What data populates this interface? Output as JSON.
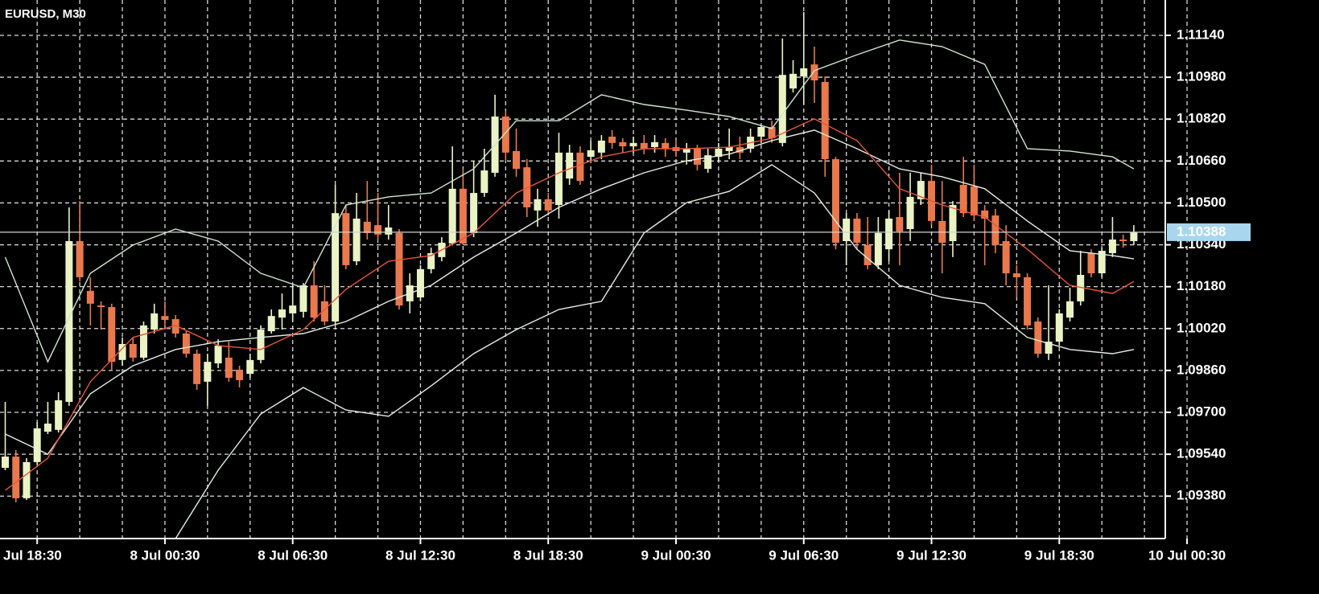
{
  "chart_data": {
    "type": "candlestick",
    "title": "EURUSD, M30",
    "categories": [
      null,
      null,
      null,
      "Jul 18:30",
      null,
      null,
      null,
      null,
      null,
      null,
      null,
      null,
      null,
      null,
      null,
      "8 Jul 00:30",
      null,
      null,
      null,
      null,
      null,
      null,
      null,
      null,
      null,
      null,
      null,
      "8 Jul 06:30",
      null,
      null,
      null,
      null,
      null,
      null,
      null,
      null,
      null,
      null,
      null,
      "8 Jul 12:30",
      null,
      null,
      null,
      null,
      null,
      null,
      null,
      null,
      null,
      null,
      null,
      "8 Jul 18:30",
      null,
      null,
      null,
      null,
      null,
      null,
      null,
      null,
      null,
      null,
      null,
      "9 Jul 00:30",
      null,
      null,
      null,
      null,
      null,
      null,
      null,
      null,
      null,
      null,
      null,
      "9 Jul 06:30",
      null,
      null,
      null,
      null,
      null,
      null,
      null,
      null,
      null,
      null,
      null,
      "9 Jul 12:30",
      null,
      null,
      null,
      null,
      null,
      null,
      null,
      null,
      null,
      null,
      null,
      "9 Jul 18:30",
      null,
      null,
      null,
      null,
      null,
      null,
      null,
      null,
      null,
      null,
      null,
      "10 Jul 00:30"
    ],
    "open": [
      1.09488,
      1.09531,
      1.09372,
      1.0951,
      1.09626,
      1.09633,
      1.0974,
      1.10354,
      1.10164,
      1.10108,
      1.10102,
      1.099,
      1.09961,
      1.09909,
      1.10016,
      1.10068,
      1.10056,
      1.10001,
      1.09924,
      1.09817,
      1.09887,
      1.09909,
      1.09863,
      1.09847,
      1.099,
      1.1001,
      1.10062,
      1.10078,
      1.10084,
      1.10185,
      1.10124,
      1.10047,
      1.10461,
      1.10277,
      1.10428,
      1.10415,
      1.10379,
      1.10385,
      1.10124,
      1.10139,
      1.10247,
      1.10293,
      1.10345,
      1.10554,
      1.10385,
      1.10538,
      1.10615,
      1.1083,
      1.10698,
      1.10636,
      1.10471,
      1.10514,
      1.10492,
      1.10593,
      1.10692,
      1.10676,
      1.10692,
      1.10753,
      1.10732,
      1.10716,
      1.10729,
      1.10713,
      1.10729,
      1.10713,
      1.10692,
      1.10707,
      1.1063,
      1.10676,
      1.10698,
      1.10713,
      1.10707,
      1.10753,
      1.1079,
      1.10729,
      1.10937,
      1.10983,
      1.11029,
      1.10962,
      1.10667,
      1.10354,
      1.1044,
      1.10339,
      1.10262,
      1.10323,
      1.10446,
      1.104,
      1.10514,
      1.10584,
      1.10431,
      1.10354,
      1.10569,
      1.10563,
      1.10471,
      1.10452,
      1.10354,
      1.10231,
      1.10216,
      1.10047,
      1.09924,
      1.0997,
      1.10062,
      1.10124,
      1.10308,
      1.10231,
      1.10308,
      1.1036,
      1.10354,
      null,
      null,
      null,
      null,
      null
    ],
    "high": [
      1.0974,
      1.09556,
      1.09525,
      1.09663,
      1.0974,
      1.09777,
      1.10483,
      1.10507,
      1.10216,
      1.10124,
      1.10115,
      1.09986,
      1.09986,
      1.10047,
      1.10115,
      1.10124,
      1.10072,
      1.1001,
      1.0994,
      1.09924,
      1.09979,
      1.0997,
      1.09878,
      1.09924,
      1.10032,
      1.10093,
      1.10154,
      1.10185,
      1.10194,
      1.10277,
      1.10185,
      1.10569,
      1.10492,
      1.10538,
      1.10584,
      1.10538,
      1.10492,
      1.104,
      1.10231,
      1.10262,
      1.10329,
      1.10369,
      1.10716,
      1.1063,
      1.10661,
      1.10707,
      1.10913,
      1.10851,
      1.10784,
      1.10667,
      1.10554,
      1.10538,
      1.10768,
      1.10722,
      1.10716,
      1.10738,
      1.10759,
      1.10778,
      1.10747,
      1.10753,
      1.10759,
      1.10759,
      1.10747,
      1.10738,
      1.10729,
      1.10722,
      1.10707,
      1.10729,
      1.10784,
      1.10753,
      1.10784,
      1.10799,
      1.10814,
      1.11128,
      1.11045,
      1.11229,
      1.11097,
      1.10983,
      1.10676,
      1.10461,
      1.10461,
      1.10446,
      1.10446,
      1.10471,
      1.10615,
      1.10615,
      1.10615,
      1.10646,
      1.10584,
      1.10507,
      1.10676,
      1.10646,
      1.10492,
      1.10477,
      1.10415,
      1.10262,
      1.10231,
      1.10062,
      1.10185,
      1.10093,
      1.10176,
      1.10317,
      1.10323,
      1.10329,
      1.10446,
      1.10379,
      1.10415,
      null,
      null,
      null,
      null,
      null
    ],
    "low": [
      1.09479,
      1.09356,
      1.09365,
      1.09501,
      1.09617,
      1.09623,
      1.09725,
      1.102,
      1.10032,
      1.10016,
      1.09863,
      1.09878,
      1.09893,
      1.099,
      1.10001,
      1.10032,
      1.09986,
      1.09909,
      1.09786,
      1.09725,
      1.09869,
      1.09817,
      1.09795,
      1.09832,
      1.09887,
      1.10001,
      1.10016,
      1.10047,
      1.10062,
      1.10047,
      1.10032,
      1.10032,
      1.10247,
      1.10262,
      1.1036,
      1.10354,
      1.1036,
      1.10093,
      1.10078,
      1.10124,
      1.10231,
      1.10277,
      1.10339,
      1.10339,
      1.10369,
      1.10523,
      1.106,
      1.10661,
      1.106,
      1.10446,
      1.10409,
      1.10452,
      1.1044,
      1.10569,
      1.10569,
      1.10661,
      1.10667,
      1.10707,
      1.10692,
      1.10692,
      1.10686,
      1.10692,
      1.10676,
      1.10676,
      1.10646,
      1.10624,
      1.10615,
      1.10661,
      1.10667,
      1.10667,
      1.10692,
      1.10729,
      1.10729,
      1.10716,
      1.10922,
      1.10876,
      1.10882,
      1.106,
      1.10323,
      1.10262,
      1.10323,
      1.10247,
      1.10247,
      1.10277,
      1.10262,
      1.10354,
      1.10492,
      1.10415,
      1.10231,
      1.10293,
      1.10446,
      1.10431,
      1.10262,
      1.10308,
      1.10185,
      1.10139,
      1.10016,
      1.09909,
      1.099,
      1.09955,
      1.10047,
      1.10108,
      1.10216,
      1.10216,
      1.10293,
      1.10329,
      1.10339,
      null,
      null,
      null,
      null,
      null
    ],
    "close": [
      1.09531,
      1.09372,
      1.0951,
      1.09639,
      1.09657,
      1.09746,
      1.10354,
      1.10216,
      1.10115,
      1.10102,
      1.09893,
      1.09961,
      1.09909,
      1.10032,
      1.10078,
      1.10053,
      1.10001,
      1.09924,
      1.09808,
      1.09893,
      1.09955,
      1.09832,
      1.09823,
      1.099,
      1.10016,
      1.10068,
      1.10093,
      1.10108,
      1.10185,
      1.10062,
      1.10047,
      1.10461,
      1.10262,
      1.1044,
      1.10385,
      1.10379,
      1.10406,
      1.10108,
      1.10185,
      1.10247,
      1.10308,
      1.10348,
      1.10554,
      1.10345,
      1.10538,
      1.10624,
      1.1083,
      1.10692,
      1.1063,
      1.10483,
      1.10514,
      1.10471,
      1.10692,
      1.10692,
      1.10584,
      1.10701,
      1.10738,
      1.10729,
      1.10716,
      1.10729,
      1.10707,
      1.10732,
      1.10707,
      1.10698,
      1.10707,
      1.10646,
      1.10682,
      1.10707,
      1.10713,
      1.10692,
      1.10753,
      1.1079,
      1.10747,
      1.10989,
      1.10993,
      1.11014,
      1.10968,
      1.10667,
      1.10348,
      1.1044,
      1.10348,
      1.10262,
      1.10385,
      1.1044,
      1.10391,
      1.10523,
      1.10584,
      1.10431,
      1.10348,
      1.10492,
      1.10461,
      1.10452,
      1.1044,
      1.10339,
      1.10231,
      1.10216,
      1.10032,
      1.09924,
      1.0997,
      1.10078,
      1.10124,
      1.10225,
      1.10231,
      1.10317,
      1.1036,
      1.10354,
      1.10388,
      null,
      null,
      null,
      null,
      null
    ],
    "up_color": "#e9f3c4",
    "down_color": "#e9784c",
    "overlays": [
      {
        "color": "#cfe6cf",
        "x": [
          0,
          4,
          8,
          12,
          16,
          20,
          24,
          28,
          32,
          36,
          40,
          44,
          48,
          52,
          56,
          60,
          64,
          68,
          72,
          76,
          80,
          84,
          88,
          92,
          96,
          100,
          104,
          106
        ],
        "values": [
          1.10293,
          1.09893,
          1.10231,
          1.10339,
          1.104,
          1.10354,
          1.10231,
          1.10176,
          1.10492,
          1.10523,
          1.10538,
          1.1063,
          1.10814,
          1.10814,
          1.10913,
          1.10876,
          1.10854,
          1.1083,
          1.10784,
          1.11005,
          1.11066,
          1.11122,
          1.11097,
          1.11029,
          1.10707,
          1.10698,
          1.10676,
          1.1063
        ]
      },
      {
        "color": "#e4efe4",
        "x": [
          0,
          4,
          8,
          12,
          16,
          20,
          24,
          28,
          32,
          36,
          40,
          44,
          48,
          52,
          56,
          60,
          64,
          68,
          72,
          76,
          80,
          84,
          88,
          92,
          96,
          100,
          104,
          106
        ],
        "values": [
          1.09617,
          1.0954,
          1.09771,
          1.09878,
          1.0994,
          1.0997,
          1.09986,
          1.10001,
          1.10047,
          1.10124,
          1.10185,
          1.10293,
          1.10385,
          1.10483,
          1.10554,
          1.10615,
          1.10661,
          1.10686,
          1.10738,
          1.10778,
          1.10707,
          1.1063,
          1.106,
          1.10554,
          1.10431,
          1.10317,
          1.10299,
          1.10286
        ]
      },
      {
        "color": "#e4efe4",
        "x": [
          0,
          4,
          8,
          12,
          16,
          20,
          24,
          28,
          32,
          36,
          40,
          44,
          48,
          52,
          56,
          60,
          64,
          68,
          72,
          76,
          80,
          84,
          88,
          92,
          96,
          100,
          104,
          106
        ],
        "values": [
          null,
          null,
          null,
          null,
          1.09218,
          1.09479,
          1.09694,
          1.09795,
          1.09709,
          1.09685,
          1.09801,
          1.09924,
          1.10016,
          1.10093,
          1.10124,
          1.10385,
          1.10501,
          1.10544,
          1.10646,
          1.10538,
          1.10323,
          1.10185,
          1.10139,
          1.10115,
          1.09986,
          1.0994,
          1.09924,
          1.0994
        ]
      },
      {
        "color": "#e8553a",
        "x": [
          0,
          4,
          8,
          12,
          16,
          20,
          24,
          28,
          32,
          36,
          40,
          44,
          48,
          52,
          56,
          60,
          64,
          68,
          72,
          76,
          80,
          84,
          88,
          92,
          96,
          100,
          104,
          106
        ],
        "values": [
          1.09402,
          1.09525,
          1.09817,
          1.09986,
          1.10032,
          1.09955,
          1.0994,
          1.10016,
          1.1017,
          1.10277,
          1.10299,
          1.10385,
          1.10538,
          1.10615,
          1.10676,
          1.10707,
          1.10707,
          1.10713,
          1.10747,
          1.10821,
          1.10738,
          1.10554,
          1.10492,
          1.10446,
          1.10323,
          1.10185,
          1.10154,
          1.102
        ]
      }
    ],
    "current_price": 1.10388,
    "current_price_color": "#a9d6ef",
    "ylim": [
      1.09218,
      1.11275
    ],
    "yticks": [
      {
        "value": 1.1114,
        "label": "1.11140"
      },
      {
        "value": 1.1098,
        "label": "1.10980"
      },
      {
        "value": 1.1082,
        "label": "1.10820"
      },
      {
        "value": 1.1066,
        "label": "1.10660"
      },
      {
        "value": 1.105,
        "label": "1.10500"
      },
      {
        "value": 1.1034,
        "label": "1.10340"
      },
      {
        "value": 1.1018,
        "label": "1.10180"
      },
      {
        "value": 1.1002,
        "label": "1.10020"
      },
      {
        "value": 1.0986,
        "label": "1.09860"
      },
      {
        "value": 1.097,
        "label": "1.09700"
      },
      {
        "value": 1.0954,
        "label": "1.09540"
      },
      {
        "value": 1.0938,
        "label": "1.09380"
      }
    ],
    "grid": true
  }
}
